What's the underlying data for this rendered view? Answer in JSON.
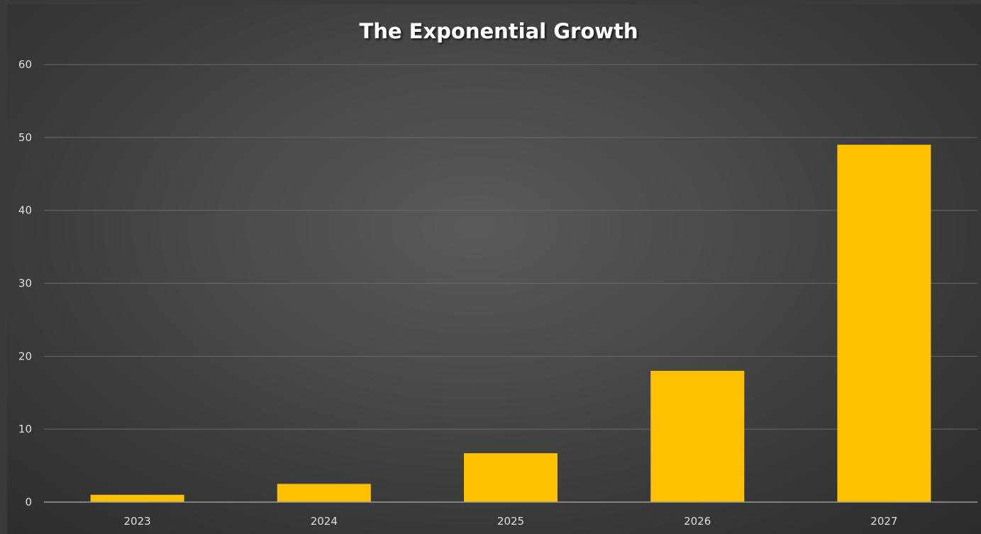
{
  "chart_data": {
    "type": "bar",
    "title": "The Exponential Growth",
    "categories": [
      "2023",
      "2024",
      "2025",
      "2026",
      "2027"
    ],
    "values": [
      1,
      2.5,
      6.7,
      18,
      49
    ],
    "xlabel": "",
    "ylabel": "",
    "ylim": [
      0,
      60
    ],
    "yticks": [
      0,
      10,
      20,
      30,
      40,
      50,
      60
    ],
    "grid": true,
    "legend": "none",
    "colors": {
      "bar": "#FFC000",
      "grid": "#6a6a6a",
      "axis": "#9a9a9a"
    }
  }
}
